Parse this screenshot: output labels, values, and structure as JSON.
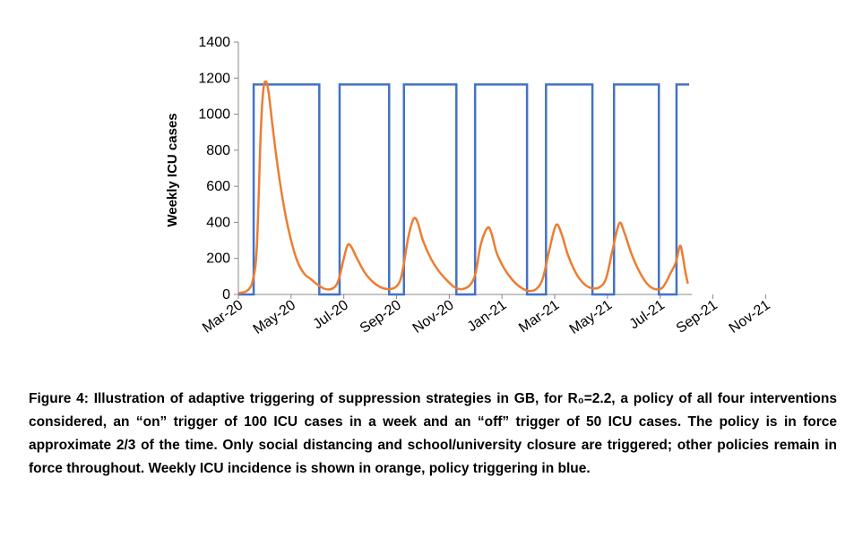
{
  "chart_data": {
    "type": "line",
    "ylabel": "Weekly ICU cases",
    "xlabel": "",
    "ylim": [
      0,
      1400
    ],
    "yticks": [
      0,
      200,
      400,
      600,
      800,
      1000,
      1200,
      1400
    ],
    "x_tick_labels": [
      "Mar-20",
      "May-20",
      "Jul-20",
      "Sep-20",
      "Nov-20",
      "Jan-21",
      "Mar-21",
      "May-21",
      "Jul-21",
      "Sep-21",
      "Nov-21"
    ],
    "x_unit": "months since Mar-20",
    "series": [
      {
        "name": "Policy triggering",
        "color": "#4472C4",
        "on_value": 1165,
        "off_value": 0,
        "on_periods": [
          [
            0.58,
            3.07
          ],
          [
            3.84,
            5.72
          ],
          [
            6.28,
            8.27
          ],
          [
            8.98,
            10.95
          ],
          [
            11.67,
            13.43
          ],
          [
            14.25,
            15.95
          ],
          [
            16.62,
            17.1
          ]
        ]
      },
      {
        "name": "Weekly ICU incidence",
        "color": "#ED7D31",
        "points": [
          [
            0,
            8
          ],
          [
            0.2,
            12
          ],
          [
            0.4,
            30
          ],
          [
            0.55,
            80
          ],
          [
            0.7,
            260
          ],
          [
            0.85,
            900
          ],
          [
            0.95,
            1140
          ],
          [
            1.05,
            1180
          ],
          [
            1.15,
            1120
          ],
          [
            1.3,
            930
          ],
          [
            1.5,
            700
          ],
          [
            1.75,
            470
          ],
          [
            2.0,
            300
          ],
          [
            2.25,
            180
          ],
          [
            2.5,
            115
          ],
          [
            2.75,
            85
          ],
          [
            3.0,
            55
          ],
          [
            3.3,
            30
          ],
          [
            3.6,
            35
          ],
          [
            3.8,
            80
          ],
          [
            4.0,
            200
          ],
          [
            4.15,
            275
          ],
          [
            4.3,
            260
          ],
          [
            4.5,
            200
          ],
          [
            4.8,
            120
          ],
          [
            5.1,
            70
          ],
          [
            5.4,
            40
          ],
          [
            5.7,
            30
          ],
          [
            6.0,
            45
          ],
          [
            6.2,
            110
          ],
          [
            6.45,
            320
          ],
          [
            6.65,
            420
          ],
          [
            6.8,
            400
          ],
          [
            7.0,
            300
          ],
          [
            7.3,
            200
          ],
          [
            7.6,
            130
          ],
          [
            7.9,
            80
          ],
          [
            8.2,
            40
          ],
          [
            8.5,
            30
          ],
          [
            8.8,
            55
          ],
          [
            9.0,
            120
          ],
          [
            9.2,
            280
          ],
          [
            9.45,
            370
          ],
          [
            9.6,
            340
          ],
          [
            9.8,
            230
          ],
          [
            10.1,
            140
          ],
          [
            10.4,
            80
          ],
          [
            10.7,
            40
          ],
          [
            11.0,
            20
          ],
          [
            11.3,
            30
          ],
          [
            11.55,
            90
          ],
          [
            11.8,
            250
          ],
          [
            12.05,
            385
          ],
          [
            12.25,
            340
          ],
          [
            12.5,
            220
          ],
          [
            12.8,
            120
          ],
          [
            13.1,
            60
          ],
          [
            13.4,
            35
          ],
          [
            13.7,
            40
          ],
          [
            13.95,
            90
          ],
          [
            14.2,
            250
          ],
          [
            14.45,
            395
          ],
          [
            14.65,
            340
          ],
          [
            14.9,
            230
          ],
          [
            15.2,
            130
          ],
          [
            15.5,
            60
          ],
          [
            15.8,
            30
          ],
          [
            16.1,
            40
          ],
          [
            16.4,
            120
          ],
          [
            16.6,
            180
          ],
          [
            16.75,
            270
          ],
          [
            16.85,
            220
          ],
          [
            16.95,
            130
          ],
          [
            17.05,
            60
          ]
        ]
      }
    ]
  },
  "caption": {
    "text": "Figure 4: Illustration of adaptive triggering of suppression strategies in GB, for R₀=2.2, a policy of all four interventions considered, an “on” trigger of 100 ICU cases in a week and an “off” trigger of 50 ICU cases. The policy is in force approximate 2/3 of the time. Only social distancing and school/university closure are triggered; other policies remain in force throughout. Weekly ICU incidence is shown in orange, policy triggering in blue."
  }
}
